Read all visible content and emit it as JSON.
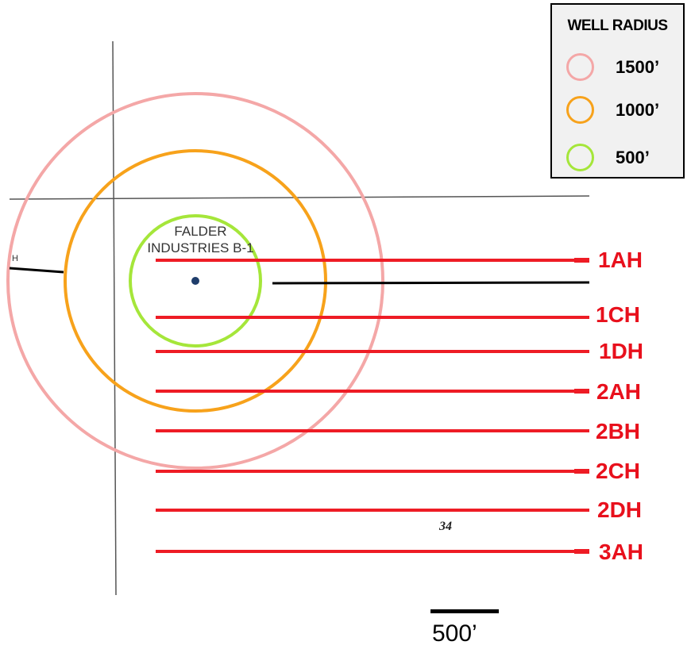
{
  "legend": {
    "title": "WELL RADIUS",
    "items": [
      {
        "label": "1500’",
        "color": "#f4a7a7"
      },
      {
        "label": "1000’",
        "color": "#f7a21b"
      },
      {
        "label": "500’",
        "color": "#a5e63a"
      }
    ]
  },
  "well": {
    "name_line1": "FALDER",
    "name_line2": "INDUSTRIES B-1",
    "marker_color": "#1f3d6b"
  },
  "laterals": {
    "color": "#ee1c25",
    "labels": [
      "1AH",
      "1CH",
      "1DH",
      "2AH",
      "2BH",
      "2CH",
      "2DH",
      "3AH"
    ]
  },
  "section_number": "34",
  "edge_label": "H",
  "scale": {
    "label": "500’"
  }
}
